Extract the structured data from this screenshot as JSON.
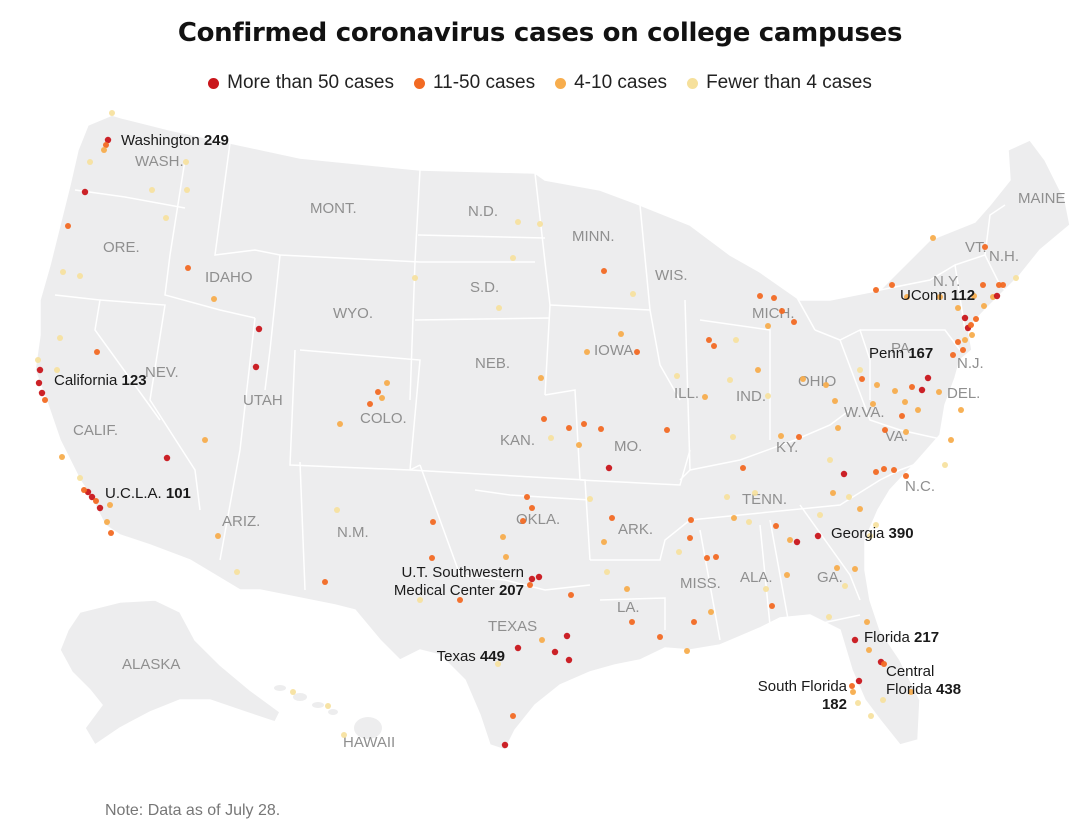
{
  "title": "Confirmed coronavirus cases on college campuses",
  "legend": [
    {
      "label": "More than 50 cases",
      "color": "#c9161b"
    },
    {
      "label": "11-50 cases",
      "color": "#f26a23"
    },
    {
      "label": "4-10 cases",
      "color": "#f7ad4d"
    },
    {
      "label": "Fewer than 4 cases",
      "color": "#f6e09b"
    }
  ],
  "note": "Note: Data as of July 28.",
  "state_labels": [
    {
      "id": "wash",
      "text": "WASH."
    },
    {
      "id": "ore",
      "text": "ORE."
    },
    {
      "id": "idaho",
      "text": "IDAHO"
    },
    {
      "id": "mont",
      "text": "MONT."
    },
    {
      "id": "wyo",
      "text": "WYO."
    },
    {
      "id": "nev",
      "text": "NEV."
    },
    {
      "id": "calif",
      "text": "CALIF."
    },
    {
      "id": "utah",
      "text": "UTAH"
    },
    {
      "id": "colo",
      "text": "COLO."
    },
    {
      "id": "ariz",
      "text": "ARIZ."
    },
    {
      "id": "nm",
      "text": "N.M."
    },
    {
      "id": "nd",
      "text": "N.D."
    },
    {
      "id": "sd",
      "text": "S.D."
    },
    {
      "id": "neb",
      "text": "NEB."
    },
    {
      "id": "kan",
      "text": "KAN."
    },
    {
      "id": "okla",
      "text": "OKLA."
    },
    {
      "id": "texas",
      "text": "TEXAS"
    },
    {
      "id": "minn",
      "text": "MINN."
    },
    {
      "id": "iowa",
      "text": "IOWA"
    },
    {
      "id": "mo",
      "text": "MO."
    },
    {
      "id": "ark",
      "text": "ARK."
    },
    {
      "id": "la",
      "text": "LA."
    },
    {
      "id": "wis",
      "text": "WIS."
    },
    {
      "id": "ill",
      "text": "ILL."
    },
    {
      "id": "mich",
      "text": "MICH."
    },
    {
      "id": "ind",
      "text": "IND."
    },
    {
      "id": "ohio",
      "text": "OHIO"
    },
    {
      "id": "ky",
      "text": "KY."
    },
    {
      "id": "tenn",
      "text": "TENN."
    },
    {
      "id": "miss",
      "text": "MISS."
    },
    {
      "id": "ala",
      "text": "ALA."
    },
    {
      "id": "ga",
      "text": "GA."
    },
    {
      "id": "nc",
      "text": "N.C."
    },
    {
      "id": "va",
      "text": "VA."
    },
    {
      "id": "wva",
      "text": "W.VA."
    },
    {
      "id": "pa",
      "text": "PA."
    },
    {
      "id": "ny",
      "text": "N.Y."
    },
    {
      "id": "vt",
      "text": "VT."
    },
    {
      "id": "nh",
      "text": "N.H."
    },
    {
      "id": "maine",
      "text": "MAINE"
    },
    {
      "id": "nj",
      "text": "N.J."
    },
    {
      "id": "del",
      "text": "DEL."
    },
    {
      "id": "alaska",
      "text": "ALASKA"
    },
    {
      "id": "hawaii",
      "text": "HAWAII"
    }
  ],
  "callouts": [
    {
      "id": "washington",
      "name": "Washington",
      "value": "249"
    },
    {
      "id": "california",
      "name": "California",
      "value": "123"
    },
    {
      "id": "ucla",
      "name": "U.C.L.A.",
      "value": "101"
    },
    {
      "id": "utsw",
      "name_line1": "U.T. Southwestern",
      "name_line2": "Medical Center",
      "value": "207"
    },
    {
      "id": "texas",
      "name": "Texas",
      "value": "449"
    },
    {
      "id": "uconn",
      "name": "UConn",
      "value": "112"
    },
    {
      "id": "penn",
      "name": "Penn",
      "value": "167"
    },
    {
      "id": "georgia",
      "name": "Georgia",
      "value": "390"
    },
    {
      "id": "florida",
      "name": "Florida",
      "value": "217"
    },
    {
      "id": "south_florida",
      "name": "South Florida",
      "value": "182"
    },
    {
      "id": "central_florida",
      "name_line1": "Central",
      "name_line2": "Florida",
      "value": "438"
    }
  ]
}
